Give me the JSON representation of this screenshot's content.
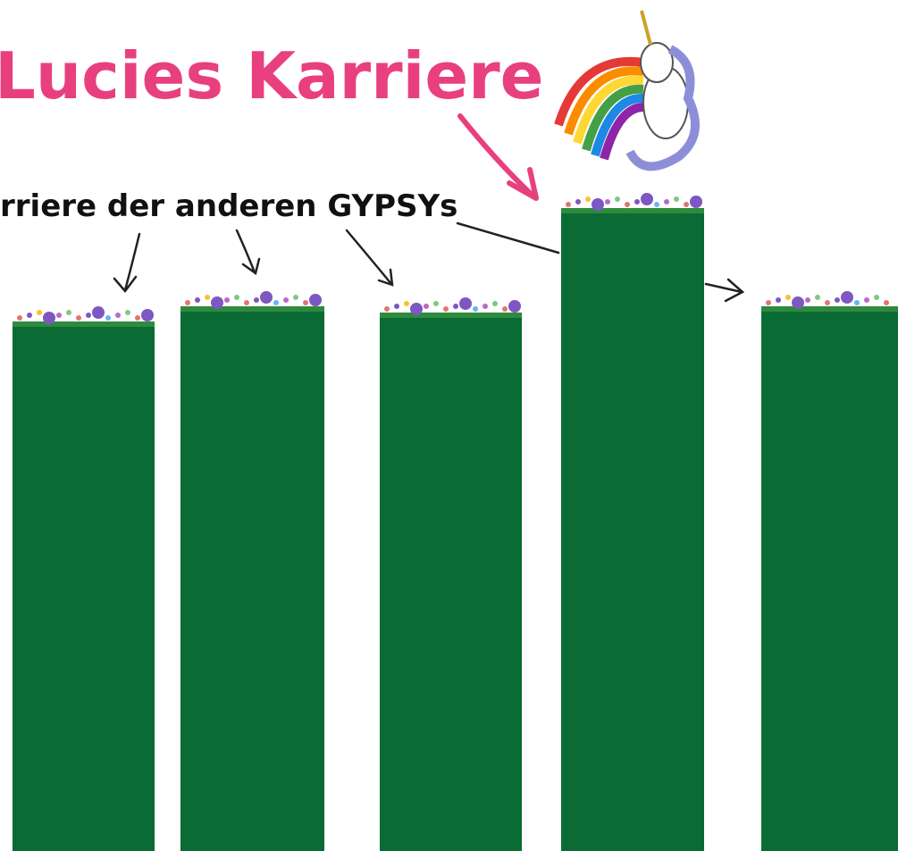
{
  "title": "Lucies Karriere",
  "subtitle": "rriere der anderen GYPSYs"
}
